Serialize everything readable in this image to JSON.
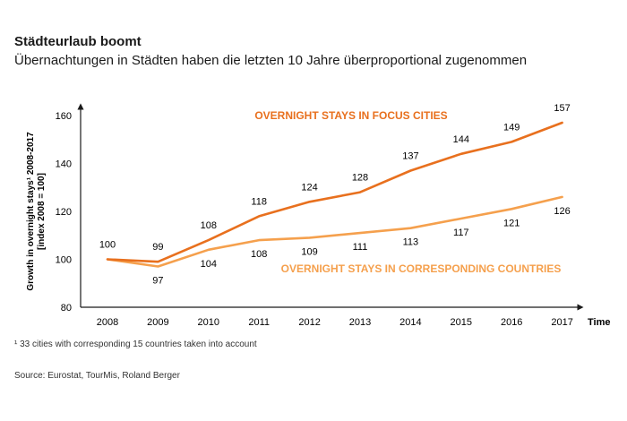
{
  "header": {
    "title": "Städteurlaub boomt",
    "subtitle": "Übernachtungen in Städten haben die letzten 10 Jahre überproportional zugenommen"
  },
  "footer": {
    "footnote": "¹ 33 cities with corresponding 15 countries taken into account",
    "source": "Source: Eurostat, TourMis, Roland Berger"
  },
  "chart_data": {
    "type": "line",
    "title": "",
    "x": [
      "2008",
      "2009",
      "2010",
      "2011",
      "2012",
      "2013",
      "2014",
      "2015",
      "2016",
      "2017"
    ],
    "xlabel": "Time",
    "ylabel_lines": [
      "Growth in overnight stays¹ 2008-2017",
      "[index 2008 = 100]"
    ],
    "yticks": [
      80,
      100,
      120,
      140,
      160
    ],
    "ylim": [
      80,
      160
    ],
    "grid": false,
    "legend": "inline labels",
    "series": [
      {
        "name": "OVERNIGHT STAYS IN FOCUS CITIES",
        "color": "#E8701E",
        "values": [
          100,
          99,
          108,
          118,
          124,
          128,
          137,
          144,
          149,
          157
        ]
      },
      {
        "name": "OVERNIGHT STAYS IN CORRESPONDING COUNTRIES",
        "color": "#F5A04D",
        "values": [
          100,
          97,
          104,
          108,
          109,
          111,
          113,
          117,
          121,
          126
        ]
      }
    ]
  }
}
